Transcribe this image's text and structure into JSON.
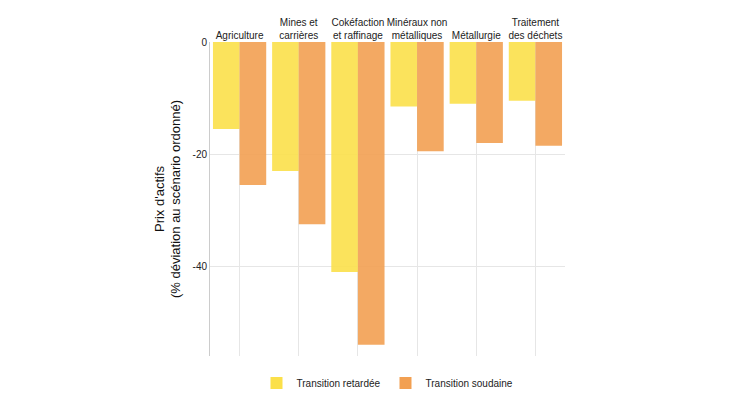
{
  "chart_data": {
    "type": "bar",
    "y_label": "Prix d'actifs\n(% déviation au scénario ordonné)",
    "categories": [
      "Agriculture",
      "Mines et\ncarrières",
      "Cokéfaction\net raffinage",
      "Minéraux non\nmétalliques",
      "Métallurgie",
      "Traitement\ndes déchets"
    ],
    "series": [
      {
        "name": "Transition retardée",
        "color": "#fbe04a",
        "values": [
          -15.5,
          -23,
          -41,
          -11.5,
          -11,
          -10.5
        ]
      },
      {
        "name": "Transition soudaine",
        "color": "#f2a052",
        "values": [
          -25.5,
          -32.5,
          -54,
          -19.5,
          -18,
          -18.5
        ]
      }
    ],
    "ylim": [
      -56,
      0
    ],
    "yticks": [
      -40,
      -20,
      0
    ],
    "grid": true,
    "legend": "bottom"
  }
}
